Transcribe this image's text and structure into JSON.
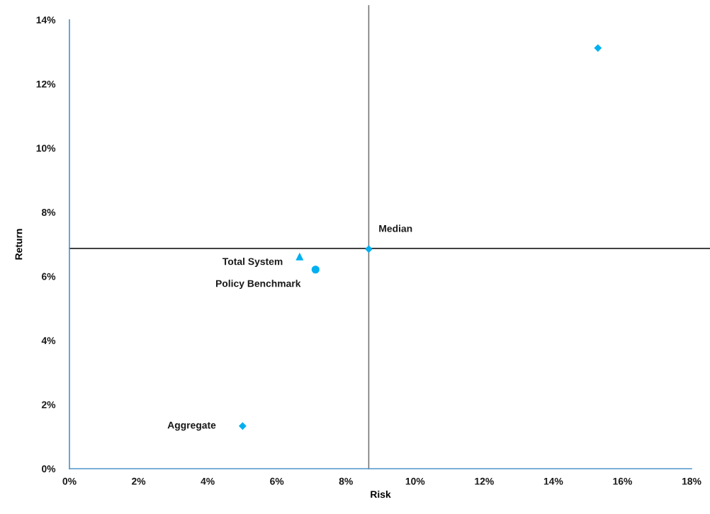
{
  "chart_data": {
    "type": "scatter",
    "xlabel": "Risk",
    "ylabel": "Return",
    "xlim": [
      0,
      18
    ],
    "ylim": [
      0,
      14
    ],
    "xticks": [
      {
        "value": 0,
        "label": "0%"
      },
      {
        "value": 2,
        "label": "2%"
      },
      {
        "value": 4,
        "label": "4%"
      },
      {
        "value": 6,
        "label": "6%"
      },
      {
        "value": 8,
        "label": "8%"
      },
      {
        "value": 10,
        "label": "10%"
      },
      {
        "value": 12,
        "label": "12%"
      },
      {
        "value": 14,
        "label": "14%"
      },
      {
        "value": 16,
        "label": "16%"
      },
      {
        "value": 18,
        "label": "18%"
      }
    ],
    "yticks": [
      {
        "value": 0,
        "label": "0%"
      },
      {
        "value": 2,
        "label": "2%"
      },
      {
        "value": 4,
        "label": "4%"
      },
      {
        "value": 6,
        "label": "6%"
      },
      {
        "value": 8,
        "label": "8%"
      },
      {
        "value": 10,
        "label": "10%"
      },
      {
        "value": 12,
        "label": "12%"
      },
      {
        "value": 14,
        "label": "14%"
      }
    ],
    "ref_lines": [
      {
        "axis": "x",
        "value": 8.66,
        "color": "#6e6e6e"
      },
      {
        "axis": "y",
        "value": 6.87,
        "color": "#262626"
      }
    ],
    "series": [
      {
        "name": "Total System",
        "color": "#00b0f0",
        "marker": "triangle",
        "x": [
          6.66
        ],
        "values": [
          6.62
        ]
      },
      {
        "name": "Policy Benchmark",
        "color": "#00b0f0",
        "marker": "circle",
        "x": [
          7.12
        ],
        "values": [
          6.21
        ]
      },
      {
        "name": "Median",
        "color": "#00b0f0",
        "marker": "diamond",
        "x": [
          8.66
        ],
        "values": [
          6.85
        ]
      },
      {
        "color": "#00b0f0",
        "marker": "diamond",
        "x": [
          15.29
        ],
        "values": [
          13.12
        ]
      },
      {
        "name": "Aggregate",
        "color": "#00b0f0",
        "marker": "diamond",
        "x": [
          5.01
        ],
        "values": [
          1.33
        ]
      }
    ]
  }
}
